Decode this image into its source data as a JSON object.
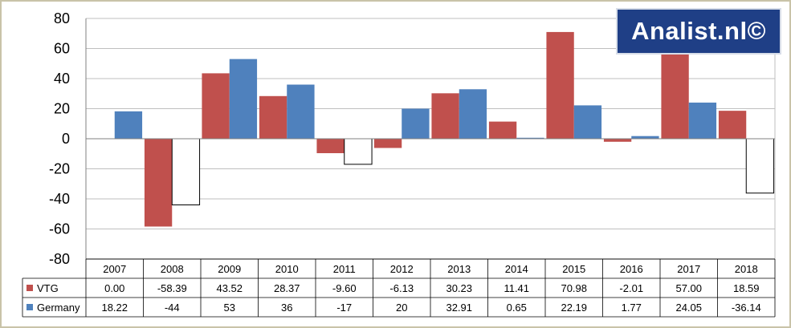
{
  "logo_text": "Analist.nl©",
  "colors": {
    "vtg": "#c0504d",
    "germany": "#4f81bd",
    "grid": "#bfbfbf",
    "logo_bg": "#1f3f86"
  },
  "chart_data": {
    "type": "bar",
    "categories": [
      "2007",
      "2008",
      "2009",
      "2010",
      "2011",
      "2012",
      "2013",
      "2014",
      "2015",
      "2016",
      "2017",
      "2018"
    ],
    "ylim": [
      -80,
      80
    ],
    "yticks": [
      80,
      60,
      40,
      20,
      0,
      -20,
      -40,
      -60,
      -80
    ],
    "grid": true,
    "legend": "table-left",
    "series": [
      {
        "name": "VTG",
        "color": "#c0504d",
        "values": [
          0.0,
          -58.39,
          43.52,
          28.37,
          -9.6,
          -6.13,
          30.23,
          11.41,
          70.98,
          -2.01,
          57.0,
          18.59
        ],
        "labels": [
          "0.00",
          "-58.39",
          "43.52",
          "28.37",
          "-9.60",
          "-6.13",
          "30.23",
          "11.41",
          "70.98",
          "-2.01",
          "57.00",
          "18.59"
        ]
      },
      {
        "name": "Germany",
        "color": "#4f81bd",
        "values": [
          18.22,
          -44,
          53,
          36,
          -17,
          20,
          32.91,
          0.65,
          22.19,
          1.77,
          24.05,
          -36.14
        ],
        "labels": [
          "18.22",
          "-44",
          "53",
          "36",
          "-17",
          "20",
          "32.91",
          "0.65",
          "22.19",
          "1.77",
          "24.05",
          "-36.14"
        ]
      }
    ]
  }
}
